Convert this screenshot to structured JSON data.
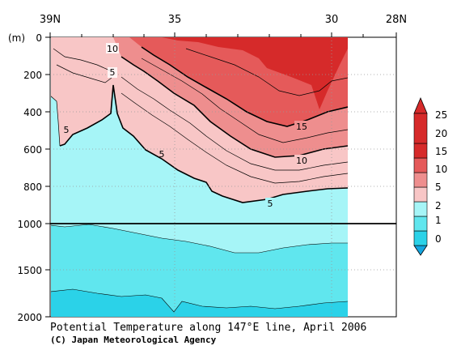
{
  "chart_data": {
    "type": "contour",
    "title": "Potential Temperature along 147°E line, April 2006",
    "credit": "(C) Japan Meteorological Agency",
    "yunit": "(m)",
    "x_ticks_top": [
      "39N",
      "35",
      "30",
      "28N"
    ],
    "x_range_lat": [
      39,
      28
    ],
    "y_ticks": [
      "0",
      "200",
      "400",
      "600",
      "800",
      "1000",
      "1500",
      "2000"
    ],
    "y_range_m": [
      0,
      2000
    ],
    "y_scale_break_m": 1000,
    "data_extent_lat": [
      39,
      29.5
    ],
    "colorbar": {
      "levels": [
        "0",
        "1",
        "2",
        "5",
        "10",
        "15",
        "20",
        "25"
      ],
      "colors": [
        "#14a6e0",
        "#2bd2e8",
        "#60e6ee",
        "#a6f5f7",
        "#f8c6c6",
        "#ee8e8e",
        "#e55a5a",
        "#d62a2a"
      ]
    },
    "contour_labels": [
      {
        "text": "10",
        "lat": 37.0,
        "depth_m": 60
      },
      {
        "text": "5",
        "lat": 37.0,
        "depth_m": 180
      },
      {
        "text": "5",
        "lat": 38.5,
        "depth_m": 460
      },
      {
        "text": "15",
        "lat": 31.8,
        "depth_m": 470
      },
      {
        "text": "10",
        "lat": 31.8,
        "depth_m": 640
      },
      {
        "text": "5",
        "lat": 35.2,
        "depth_m": 580
      },
      {
        "text": "5",
        "lat": 33.6,
        "depth_m": 890
      }
    ]
  }
}
